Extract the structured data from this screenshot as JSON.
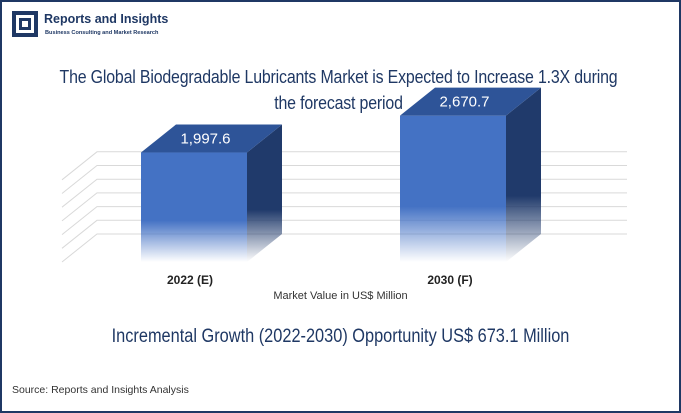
{
  "logo": {
    "name": "Reports and Insights",
    "tagline": "Business Consulting and Market Research"
  },
  "title": "The Global Biodegradable Lubricants Market is Expected to Increase 1.3X during the forecast period",
  "headline": "Incremental Growth (2022-2030) Opportunity US$ 673.1 Million",
  "source": "Source: Reports and Insights Analysis",
  "colors": {
    "brand": "#1f3864",
    "bar_front": "#4472c4",
    "bar_top": "#2e5498",
    "bar_side": "#203a6b"
  },
  "chart_data": {
    "type": "bar",
    "categories": [
      "2022 (E)",
      "2030 (F)"
    ],
    "values": [
      1997.6,
      2670.7
    ],
    "value_labels": [
      "1,997.6",
      "2,670.7"
    ],
    "xlabel": "Market Value in US$ Million",
    "ylabel": "",
    "ylim": [
      0,
      3000
    ],
    "grid": true,
    "legend": "none"
  }
}
